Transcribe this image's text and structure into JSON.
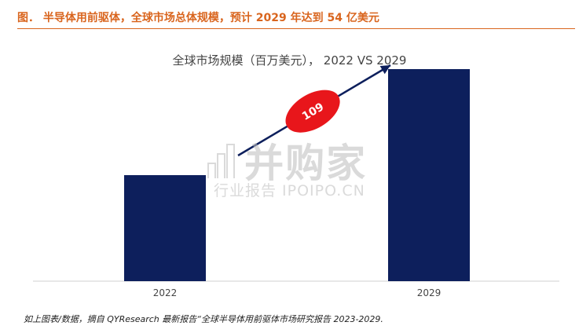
{
  "figure": {
    "title": "图．  半导体用前驱体，全球市场总体规模，预计 2029 年达到 54 亿美元",
    "footnote": "如上图表/数据，摘自 QYResearch 最新报告“全球半导体用前驱体市场研究报告 2023-2029."
  },
  "watermark": {
    "brand": "并购家",
    "sub": "行业报告 IPOIPO.CN"
  },
  "chart_data": {
    "type": "bar",
    "title": "全球市场规模（百万美元），  2022 VS 2029",
    "categories": [
      "2022",
      "2029"
    ],
    "values": [
      27,
      54
    ],
    "ylim": [
      0,
      60
    ],
    "bar_color": "#0d1f5c",
    "arrow_color": "#0d1f5c",
    "badge_color": "#e8161b",
    "annotation": "109",
    "grid": false,
    "legend": "none"
  }
}
